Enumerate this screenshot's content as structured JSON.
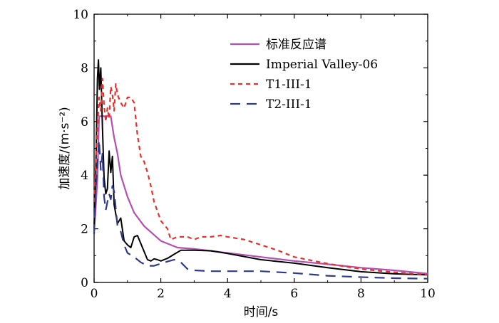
{
  "chart_data": {
    "type": "line",
    "xlabel": "时间/s",
    "ylabel": "加速度/(m·s⁻²)",
    "xlim": [
      0,
      10
    ],
    "ylim": [
      0,
      10
    ],
    "xticks": [
      "0",
      "2",
      "4",
      "6",
      "8",
      "10"
    ],
    "yticks": [
      "0",
      "2",
      "4",
      "6",
      "8",
      "10"
    ],
    "grid": false,
    "legend_position": "top-right",
    "series": [
      {
        "name": "标准反应谱",
        "color": "#b44fb4",
        "dash": "solid",
        "x": [
          0,
          0.05,
          0.1,
          0.15,
          0.5,
          0.6,
          0.7,
          0.8,
          1.0,
          1.2,
          1.5,
          2.0,
          2.5,
          3.0,
          4.0,
          5.0,
          6.0,
          7.0,
          8.0,
          9.0,
          10.0
        ],
        "y": [
          1.9,
          2.8,
          3.9,
          6.2,
          6.2,
          5.4,
          4.8,
          4.0,
          3.2,
          2.6,
          2.1,
          1.55,
          1.3,
          1.25,
          1.1,
          0.95,
          0.8,
          0.68,
          0.55,
          0.45,
          0.33
        ]
      },
      {
        "name": "Imperial Valley-06",
        "color": "#000000",
        "dash": "solid",
        "x": [
          0,
          0.05,
          0.1,
          0.13,
          0.16,
          0.2,
          0.25,
          0.3,
          0.35,
          0.4,
          0.45,
          0.5,
          0.55,
          0.6,
          0.7,
          0.8,
          0.9,
          1.0,
          1.1,
          1.2,
          1.3,
          1.4,
          1.5,
          1.6,
          1.7,
          1.8,
          1.9,
          2.0,
          2.2,
          2.4,
          2.6,
          2.8,
          3.0,
          3.5,
          4.0,
          5.0,
          6.0,
          7.0,
          8.0,
          9.0,
          10.0
        ],
        "y": [
          2.0,
          4.0,
          7.6,
          8.3,
          7.2,
          8.0,
          5.8,
          3.9,
          3.3,
          3.5,
          4.9,
          4.1,
          4.7,
          2.9,
          2.2,
          2.4,
          1.55,
          1.4,
          1.3,
          1.7,
          1.75,
          1.45,
          1.15,
          0.85,
          0.8,
          0.88,
          0.85,
          0.8,
          0.9,
          1.05,
          1.2,
          1.2,
          1.2,
          1.18,
          1.08,
          0.85,
          0.72,
          0.55,
          0.4,
          0.32,
          0.28
        ]
      },
      {
        "name": "T1-III-1",
        "color": "#e8302a",
        "dash": "short-dash",
        "x": [
          0,
          0.05,
          0.1,
          0.15,
          0.2,
          0.25,
          0.3,
          0.35,
          0.4,
          0.45,
          0.5,
          0.55,
          0.6,
          0.65,
          0.7,
          0.8,
          0.9,
          1.0,
          1.1,
          1.2,
          1.3,
          1.4,
          1.5,
          1.6,
          1.7,
          1.8,
          2.0,
          2.2,
          2.3,
          2.5,
          2.8,
          3.0,
          3.2,
          3.5,
          3.8,
          4.0,
          4.5,
          5.0,
          5.5,
          6.0,
          7.0,
          8.0,
          9.0,
          10.0
        ],
        "y": [
          3.0,
          4.5,
          5.8,
          6.9,
          6.4,
          7.6,
          6.6,
          6.0,
          6.5,
          6.1,
          7.3,
          7.0,
          6.4,
          7.4,
          7.0,
          6.7,
          6.5,
          6.9,
          6.9,
          6.7,
          5.5,
          4.7,
          4.5,
          4.1,
          3.6,
          3.0,
          2.3,
          2.0,
          1.6,
          1.7,
          1.7,
          1.6,
          1.7,
          1.7,
          1.75,
          1.7,
          1.6,
          1.4,
          1.2,
          0.95,
          0.7,
          0.5,
          0.38,
          0.28
        ]
      },
      {
        "name": "T2-III-1",
        "color": "#2e3a8c",
        "dash": "long-dash",
        "x": [
          0,
          0.05,
          0.1,
          0.15,
          0.2,
          0.25,
          0.3,
          0.35,
          0.4,
          0.45,
          0.5,
          0.55,
          0.6,
          0.7,
          0.8,
          0.9,
          1.0,
          1.2,
          1.4,
          1.6,
          1.8,
          2.0,
          2.2,
          2.4,
          2.6,
          2.8,
          3.0,
          3.5,
          4.0,
          5.0,
          6.0,
          7.0,
          8.0,
          9.0,
          10.0
        ],
        "y": [
          1.8,
          3.5,
          4.4,
          5.3,
          4.2,
          4.8,
          3.2,
          2.7,
          3.0,
          3.3,
          3.1,
          3.6,
          3.4,
          2.1,
          1.9,
          1.4,
          1.1,
          0.95,
          0.75,
          0.62,
          0.62,
          0.7,
          0.78,
          0.85,
          0.75,
          0.5,
          0.45,
          0.42,
          0.42,
          0.42,
          0.35,
          0.25,
          0.2,
          0.16,
          0.14
        ]
      }
    ]
  }
}
